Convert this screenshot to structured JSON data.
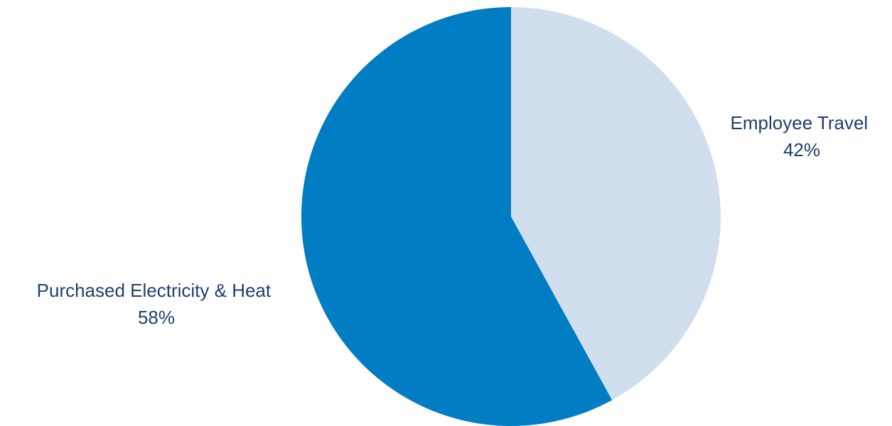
{
  "chart_data": {
    "type": "pie",
    "title": "",
    "start_angle_deg": 0,
    "direction": "clockwise",
    "slices": [
      {
        "label": "Employee Travel",
        "value": 42,
        "display": "42%",
        "color": "#d1deed"
      },
      {
        "label": "Purchased Electricity & Heat",
        "value": 58,
        "display": "58%",
        "color": "#007dc3"
      }
    ],
    "label_color": "#1f3f6e"
  }
}
